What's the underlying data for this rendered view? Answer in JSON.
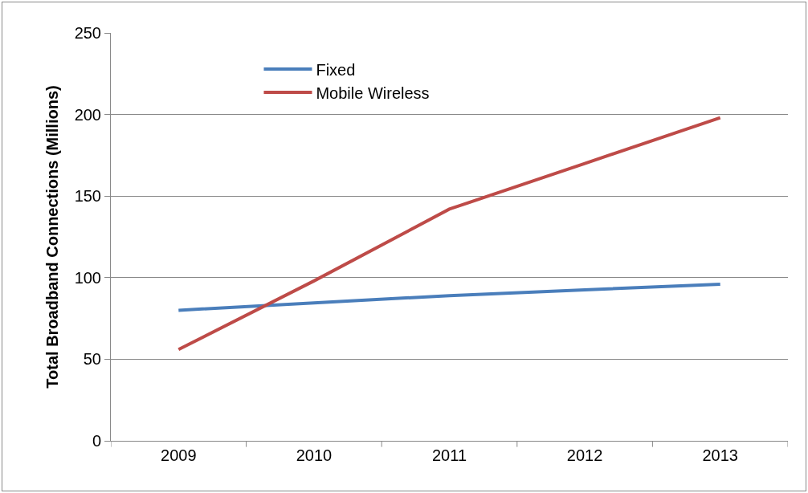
{
  "chart_data": {
    "type": "line",
    "ylabel": "Total Broadband Connections (Millions)",
    "categories": [
      "2009",
      "2010",
      "2011",
      "2012",
      "2013"
    ],
    "series": [
      {
        "name": "Fixed",
        "color": "#4a7ebb",
        "values": [
          80,
          84.5,
          89,
          92.5,
          96
        ]
      },
      {
        "name": "Mobile Wireless",
        "color": "#be4b48",
        "values": [
          56,
          98,
          142,
          170,
          198
        ]
      }
    ],
    "ylim": [
      0,
      250
    ],
    "yticks": [
      0,
      50,
      100,
      150,
      200,
      250
    ],
    "grid": "y",
    "legend": "top left",
    "marker": "none",
    "line_style": "solid"
  }
}
